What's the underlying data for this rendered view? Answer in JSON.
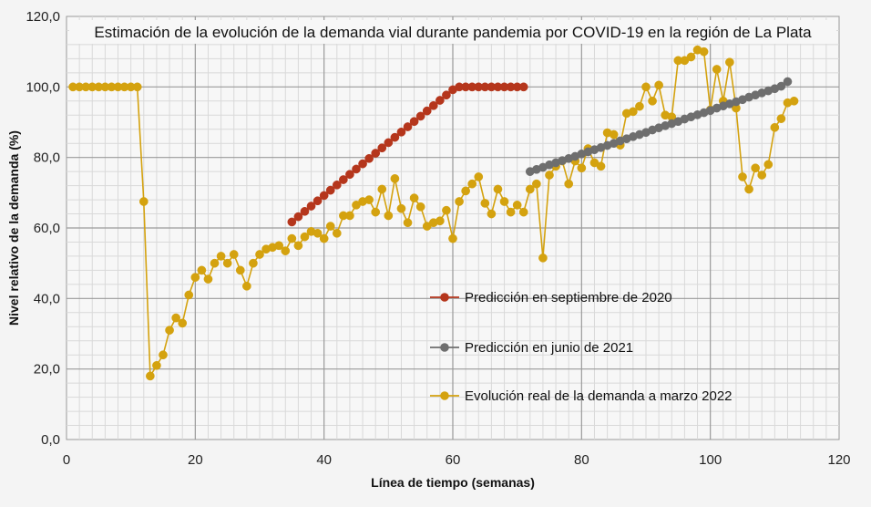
{
  "chart_data": {
    "type": "line",
    "title": "Estimación de la evolución de la demanda vial durante pandemia por COVID-19 en la región de La Plata",
    "xlabel": "Línea de tiempo (semanas)",
    "ylabel": "Nivel relativo de la demanda (%)",
    "xlim": [
      0,
      120
    ],
    "ylim": [
      0,
      120
    ],
    "xticks": [
      "0",
      "20",
      "40",
      "60",
      "80",
      "100",
      "120"
    ],
    "yticks": [
      "0,0",
      "20,0",
      "40,0",
      "60,0",
      "80,0",
      "100,0",
      "120,0"
    ],
    "grid": true,
    "legend_placement": "center-right",
    "series": [
      {
        "name": "Predicción en septiembre de 2020",
        "color": "#b5361c",
        "x": [
          35,
          36,
          37,
          38,
          39,
          40,
          41,
          42,
          43,
          44,
          45,
          46,
          47,
          48,
          49,
          50,
          51,
          52,
          53,
          54,
          55,
          56,
          57,
          58,
          59,
          60,
          61,
          62,
          63,
          64,
          65,
          66,
          67,
          68,
          69,
          70,
          71
        ],
        "y": [
          61.7,
          63.2,
          64.7,
          66.2,
          67.7,
          69.2,
          70.7,
          72.2,
          73.7,
          75.2,
          76.7,
          78.2,
          79.7,
          81.2,
          82.7,
          84.2,
          85.7,
          87.2,
          88.7,
          90.2,
          91.7,
          93.2,
          94.7,
          96.2,
          97.7,
          99.2,
          100,
          100,
          100,
          100,
          100,
          100,
          100,
          100,
          100,
          100,
          100
        ]
      },
      {
        "name": "Predicción en junio de 2021",
        "color": "#6e6e6e",
        "x": [
          72,
          73,
          74,
          75,
          76,
          77,
          78,
          79,
          80,
          81,
          82,
          83,
          84,
          85,
          86,
          87,
          88,
          89,
          90,
          91,
          92,
          93,
          94,
          95,
          96,
          97,
          98,
          99,
          100,
          101,
          102,
          103,
          104,
          105,
          106,
          107,
          108,
          109,
          110,
          111,
          112
        ],
        "y": [
          76.0,
          76.6,
          77.2,
          77.9,
          78.5,
          79.1,
          79.7,
          80.3,
          81.0,
          81.6,
          82.2,
          82.8,
          83.4,
          84.0,
          84.7,
          85.3,
          85.9,
          86.5,
          87.1,
          87.8,
          88.4,
          89.0,
          89.6,
          90.2,
          90.9,
          91.5,
          92.1,
          92.7,
          93.3,
          94.0,
          94.6,
          95.2,
          95.8,
          96.4,
          97.1,
          97.7,
          98.3,
          98.9,
          99.5,
          100.2,
          101.5
        ]
      },
      {
        "name": "Evolución real de la demanda a marzo 2022",
        "color": "#d4a20f",
        "x": [
          1,
          2,
          3,
          4,
          5,
          6,
          7,
          8,
          9,
          10,
          11,
          12,
          13,
          14,
          15,
          16,
          17,
          18,
          19,
          20,
          21,
          22,
          23,
          24,
          25,
          26,
          27,
          28,
          29,
          30,
          31,
          32,
          33,
          34,
          35,
          36,
          37,
          38,
          39,
          40,
          41,
          42,
          43,
          44,
          45,
          46,
          47,
          48,
          49,
          50,
          51,
          52,
          53,
          54,
          55,
          56,
          57,
          58,
          59,
          60,
          61,
          62,
          63,
          64,
          65,
          66,
          67,
          68,
          69,
          70,
          71,
          72,
          73,
          74,
          75,
          76,
          77,
          78,
          79,
          80,
          81,
          82,
          83,
          84,
          85,
          86,
          87,
          88,
          89,
          90,
          91,
          92,
          93,
          94,
          95,
          96,
          97,
          98,
          99,
          100,
          101,
          102,
          103,
          104,
          105,
          106,
          107,
          108,
          109,
          110,
          111,
          112,
          113
        ],
        "y": [
          100,
          100,
          100,
          100,
          100,
          100,
          100,
          100,
          100,
          100,
          100,
          67.5,
          18.0,
          21.0,
          24.0,
          31.0,
          34.5,
          33.0,
          41.0,
          46.0,
          48.0,
          45.5,
          50.0,
          52.0,
          50.0,
          52.5,
          48.0,
          43.5,
          50.0,
          52.5,
          54.0,
          54.5,
          55.0,
          53.5,
          57.0,
          55.0,
          57.5,
          59.0,
          58.5,
          57.0,
          60.5,
          58.5,
          63.5,
          63.5,
          66.5,
          67.5,
          68.0,
          64.5,
          71.0,
          63.5,
          74.0,
          65.5,
          61.5,
          68.5,
          66.0,
          60.5,
          61.5,
          62.0,
          65.0,
          57.0,
          67.5,
          70.5,
          72.5,
          74.5,
          67.0,
          64.0,
          71.0,
          67.5,
          64.5,
          66.5,
          64.5,
          71.0,
          72.5,
          51.5,
          75.0,
          77.5,
          79.0,
          72.5,
          79.0,
          77.0,
          82.5,
          78.5,
          77.5,
          87.0,
          86.5,
          83.5,
          92.5,
          93.0,
          94.5,
          100.0,
          96.0,
          100.5,
          92.0,
          91.5,
          107.5,
          107.5,
          108.5,
          110.5,
          110.0,
          93.5,
          105.0,
          96.0,
          107.0,
          94.0,
          74.5,
          71.0,
          77.0,
          75.0,
          78.0,
          88.5,
          91.0,
          95.5,
          96.0
        ]
      }
    ]
  }
}
